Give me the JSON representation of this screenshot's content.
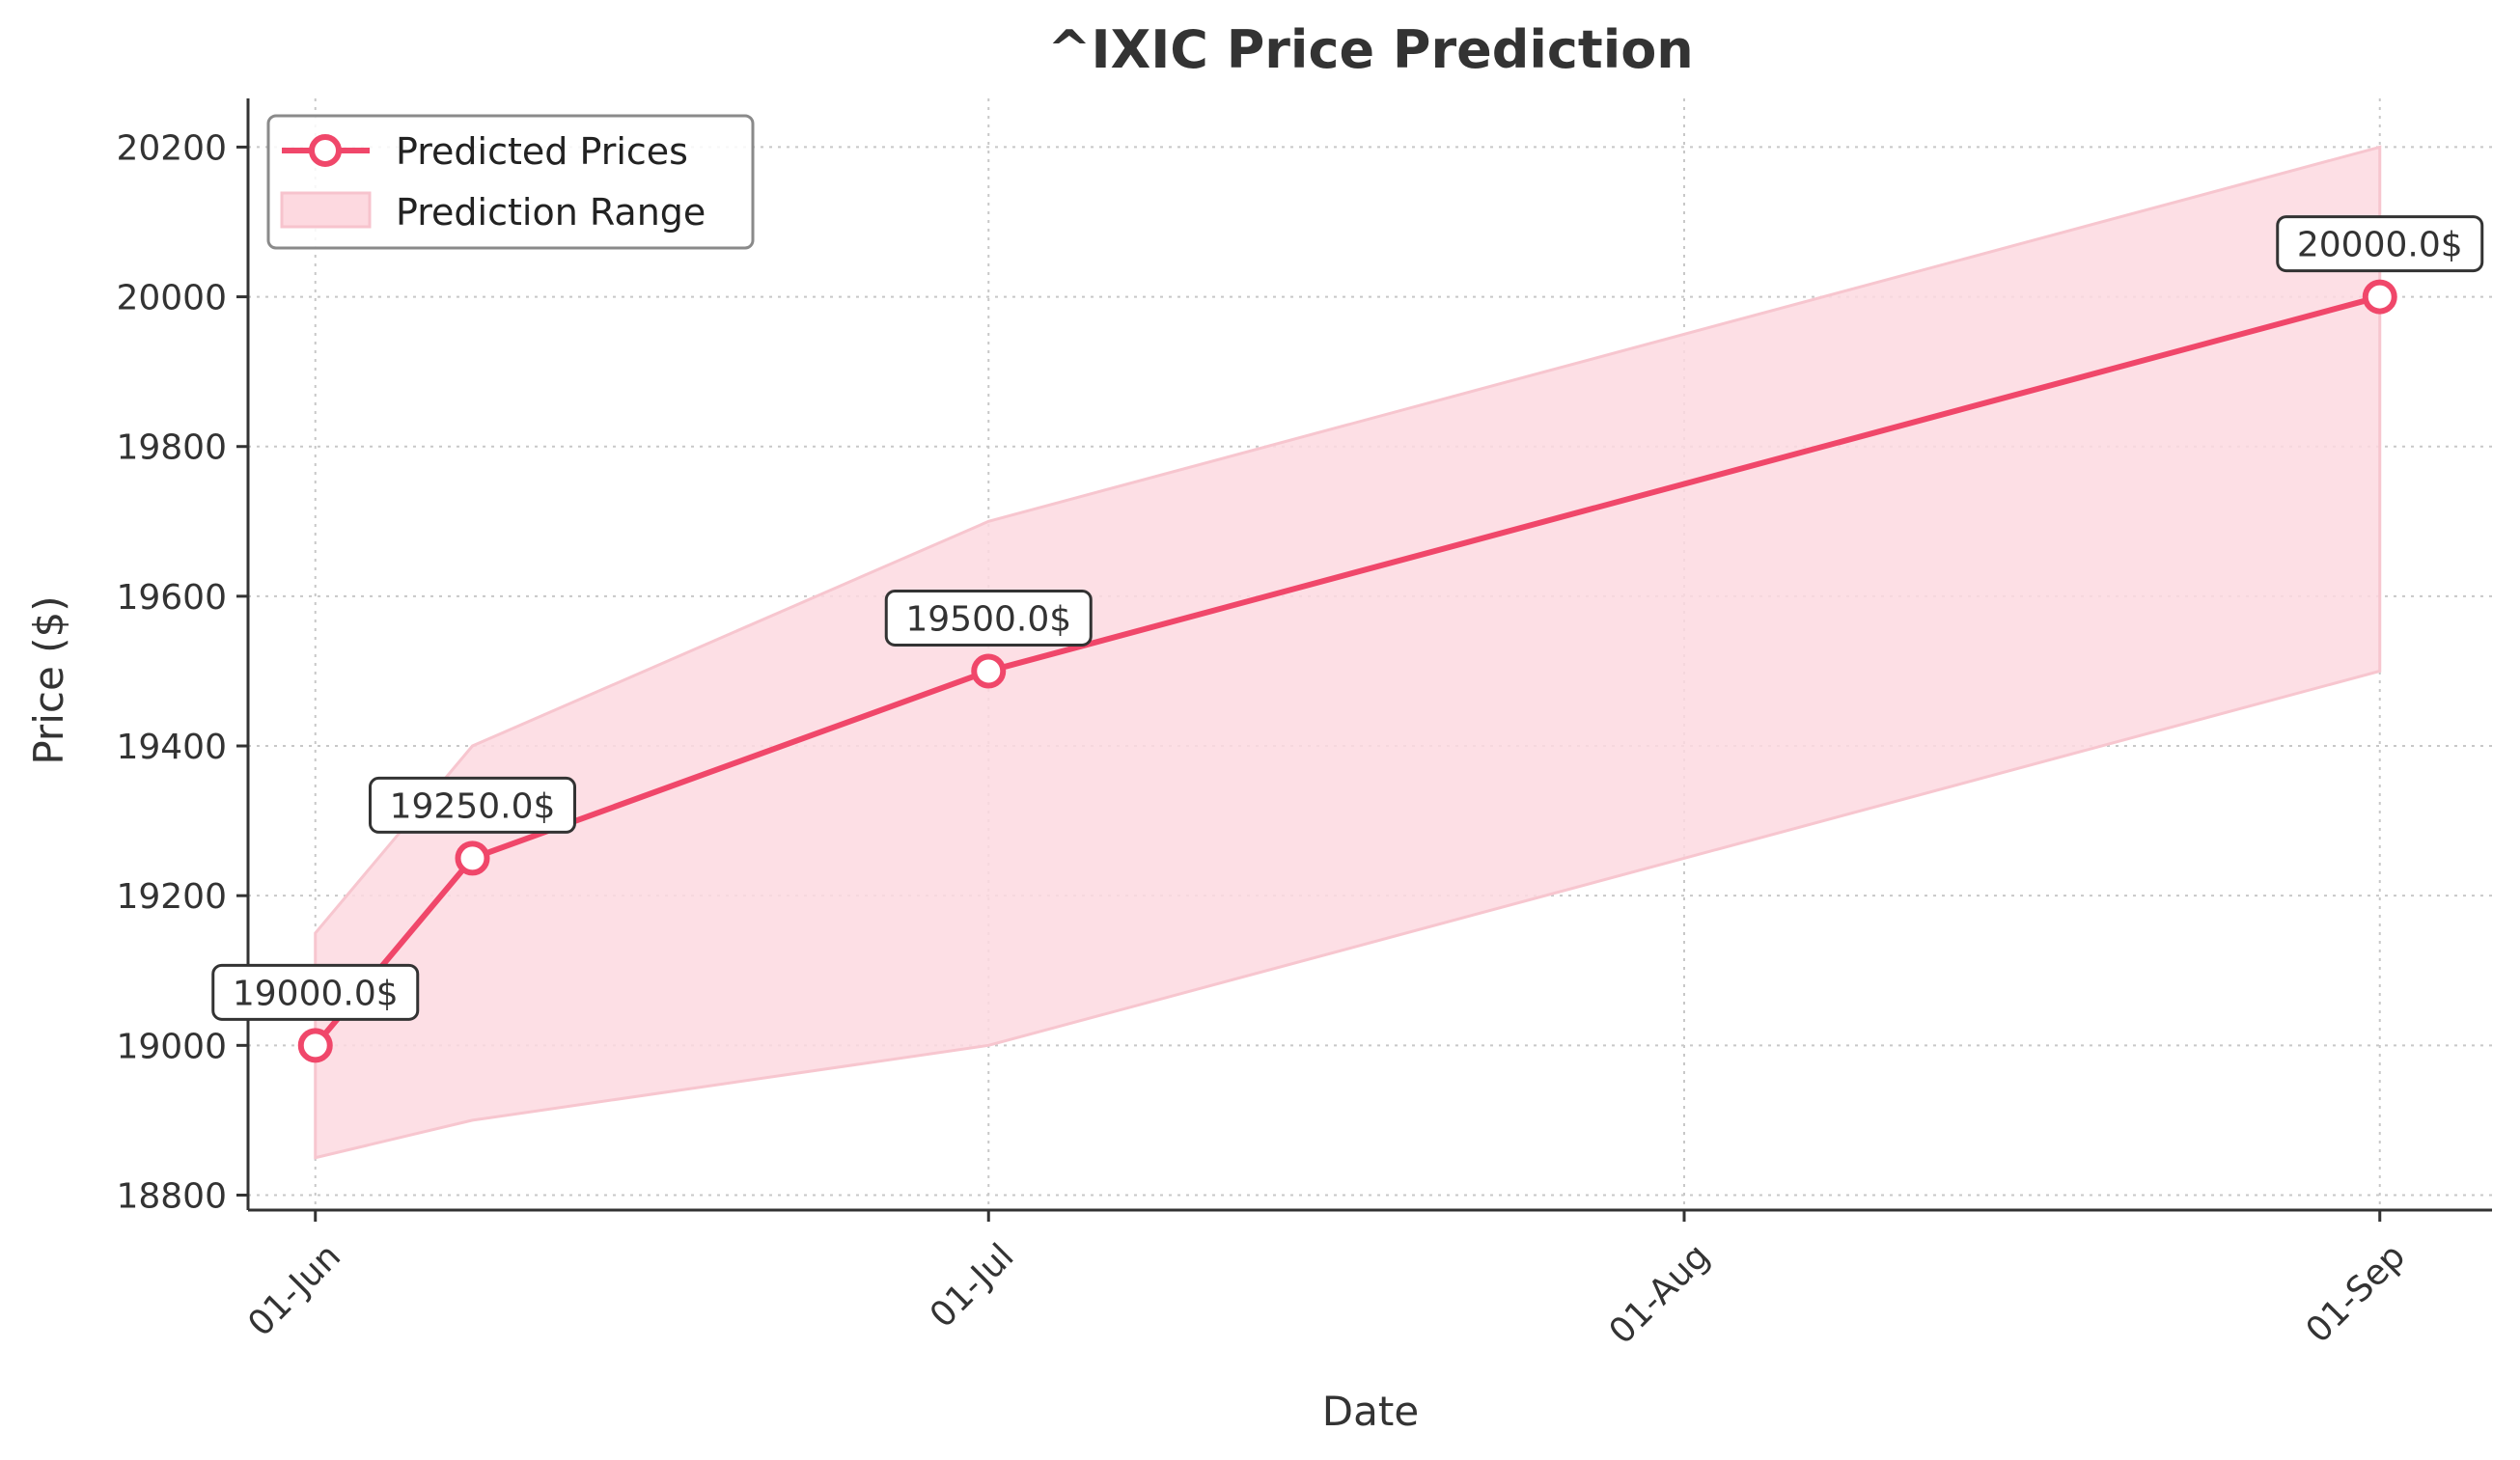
{
  "chart_data": {
    "type": "line",
    "title": "^IXIC Price Prediction",
    "xlabel": "Date",
    "ylabel": "Price ($)",
    "x_ticks": [
      "01-Jun",
      "01-Jul",
      "01-Aug",
      "01-Sep"
    ],
    "x_tick_dates": [
      "2025-06-01",
      "2025-07-01",
      "2025-08-01",
      "2025-09-01"
    ],
    "y_ticks": [
      18800,
      19000,
      19200,
      19400,
      19600,
      19800,
      20000,
      20200
    ],
    "ylim": [
      18780,
      20265
    ],
    "xlim": [
      "2025-05-29",
      "2025-09-06"
    ],
    "grid": true,
    "legend_position": "top-left",
    "series": [
      {
        "name": "Predicted Prices",
        "kind": "line",
        "color": "#f0476a",
        "points": [
          {
            "x": "2025-06-01",
            "y": 19000,
            "label": "19000.0$"
          },
          {
            "x": "2025-06-08",
            "y": 19250,
            "label": "19250.0$"
          },
          {
            "x": "2025-07-01",
            "y": 19500,
            "label": "19500.0$"
          },
          {
            "x": "2025-09-01",
            "y": 20000,
            "label": "20000.0$"
          }
        ]
      },
      {
        "name": "Prediction Range",
        "kind": "band",
        "color": "#fdd9e0",
        "points": [
          {
            "x": "2025-06-01",
            "low": 18850,
            "high": 19150
          },
          {
            "x": "2025-06-08",
            "low": 18900,
            "high": 19400
          },
          {
            "x": "2025-07-01",
            "low": 19000,
            "high": 19700
          },
          {
            "x": "2025-09-01",
            "low": 19500,
            "high": 20200
          }
        ]
      }
    ]
  }
}
